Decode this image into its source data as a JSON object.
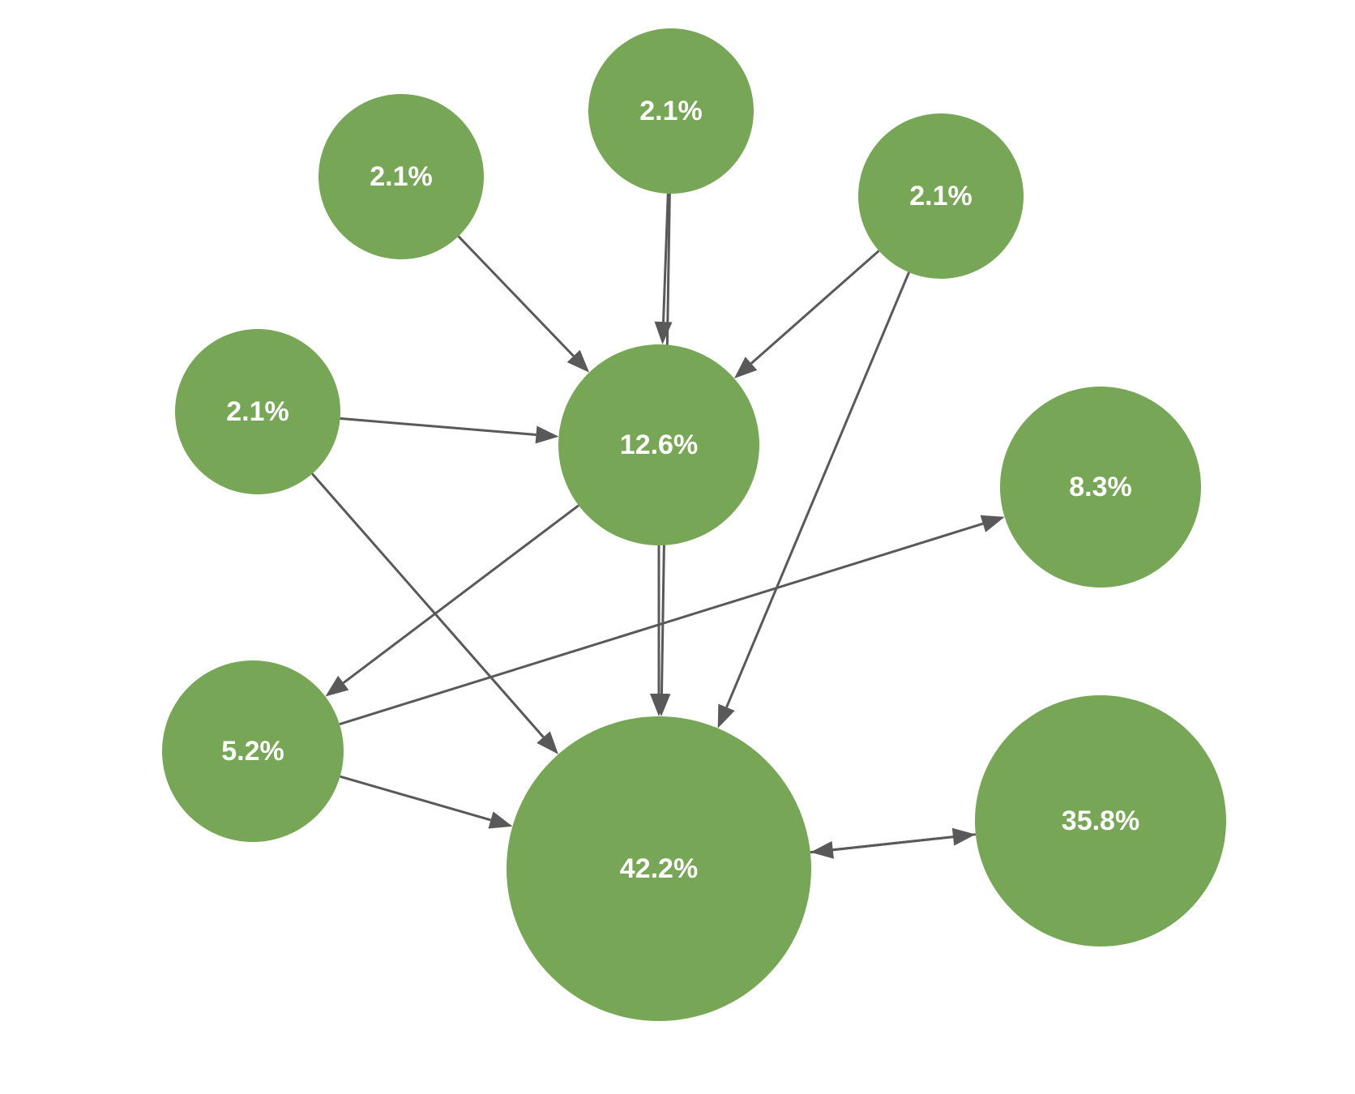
{
  "diagram": {
    "colors": {
      "node_fill": "#77a657",
      "label": "#ffffff",
      "edge": "#595959"
    },
    "nodes": [
      {
        "id": "n1",
        "label": "2.1%"
      },
      {
        "id": "n2",
        "label": "2.1%"
      },
      {
        "id": "n3",
        "label": "2.1%"
      },
      {
        "id": "n4",
        "label": "2.1%"
      },
      {
        "id": "n5",
        "label": "12.6%"
      },
      {
        "id": "n6",
        "label": "8.3%"
      },
      {
        "id": "n7",
        "label": "5.2%"
      },
      {
        "id": "n8",
        "label": "42.2%"
      },
      {
        "id": "n9",
        "label": "35.8%"
      }
    ],
    "edges": [
      {
        "from": "n1",
        "to": "n5"
      },
      {
        "from": "n1",
        "to": "n8"
      },
      {
        "from": "n2",
        "to": "n5"
      },
      {
        "from": "n3",
        "to": "n5"
      },
      {
        "from": "n3",
        "to": "n8"
      },
      {
        "from": "n4",
        "to": "n5"
      },
      {
        "from": "n4",
        "to": "n8"
      },
      {
        "from": "n5",
        "to": "n7"
      },
      {
        "from": "n5",
        "to": "n8"
      },
      {
        "from": "n7",
        "to": "n6"
      },
      {
        "from": "n7",
        "to": "n8"
      },
      {
        "from": "n8",
        "to": "n9"
      },
      {
        "from": "n9",
        "to": "n8"
      }
    ]
  }
}
